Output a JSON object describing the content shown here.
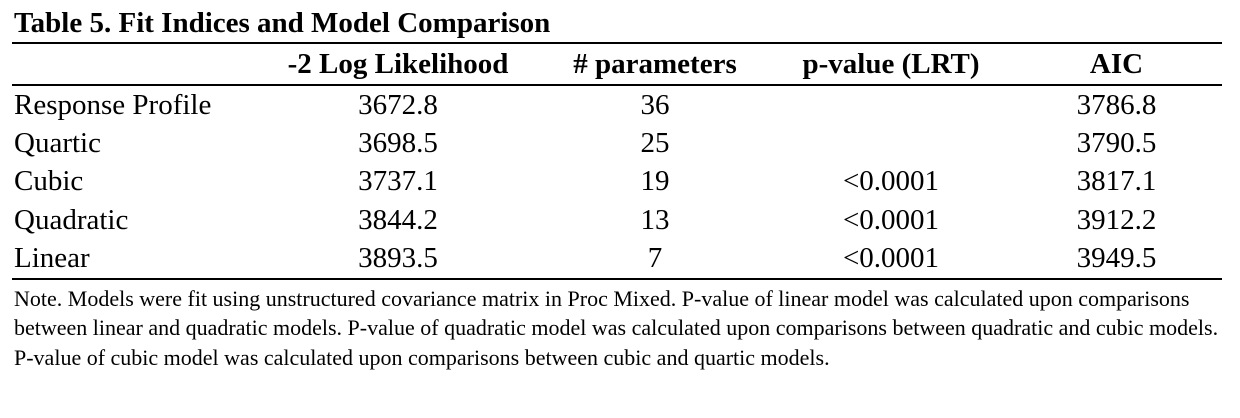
{
  "title": "Table 5. Fit Indices and Model Comparison",
  "columns": [
    "",
    "-2 Log Likelihood",
    "# parameters",
    "p-value (LRT)",
    "AIC"
  ],
  "rows": [
    {
      "model": "Response Profile",
      "neg2ll": "3672.8",
      "params": "36",
      "pvalue": "",
      "aic": "3786.8"
    },
    {
      "model": "Quartic",
      "neg2ll": "3698.5",
      "params": "25",
      "pvalue": "",
      "aic": "3790.5"
    },
    {
      "model": "Cubic",
      "neg2ll": "3737.1",
      "params": "19",
      "pvalue": "<0.0001",
      "aic": "3817.1"
    },
    {
      "model": "Quadratic",
      "neg2ll": "3844.2",
      "params": "13",
      "pvalue": "<0.0001",
      "aic": "3912.2"
    },
    {
      "model": "Linear",
      "neg2ll": "3893.5",
      "params": "7",
      "pvalue": "<0.0001",
      "aic": "3949.5"
    }
  ],
  "note": "Note. Models were fit using unstructured covariance matrix in Proc Mixed. P-value of linear model was calculated upon comparisons between linear and quadratic models. P-value of quadratic model was calculated upon comparisons between quadratic and cubic models. P-value of cubic model was calculated upon comparisons between cubic and quartic models."
}
